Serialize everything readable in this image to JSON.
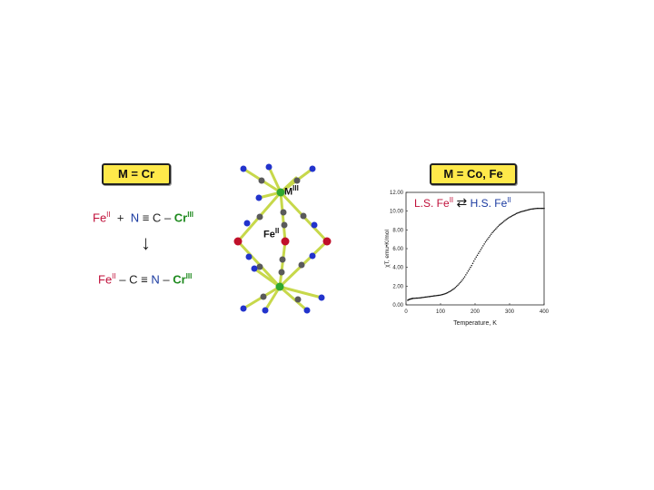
{
  "left": {
    "badge": "M = Cr",
    "reactants": {
      "fe": "Fe",
      "fe_ox": "II",
      "plus": "+",
      "n": "N",
      "triple": "≡",
      "c": "C",
      "dash": "–",
      "cr": "Cr",
      "cr_ox": "III"
    },
    "arrow": "↓",
    "product": {
      "fe": "Fe",
      "fe_ox": "II",
      "dash1": "–",
      "c": "C",
      "triple": "≡",
      "n": "N",
      "dash2": "–",
      "cr": "Cr",
      "cr_ox": "III"
    }
  },
  "structure": {
    "metal_label": "M",
    "metal_ox": "III",
    "fe_label": "Fe",
    "fe_ox": "II",
    "colors": {
      "bond": "#c7d84a",
      "metal": "#2fa82f",
      "iron": "#c0102a",
      "carbon": "#5a5a5a",
      "nitrogen": "#2233cc"
    }
  },
  "right": {
    "badge": "M = Co, Fe"
  },
  "chart_data": {
    "type": "scatter",
    "xlabel": "Temperature, K",
    "ylabel": "χT, emu•K/mol",
    "xlim": [
      0,
      400
    ],
    "ylim": [
      0,
      12
    ],
    "xticks": [
      "0",
      "100",
      "200",
      "300",
      "400"
    ],
    "yticks": [
      "0.00",
      "2.00",
      "4.00",
      "6.00",
      "8.00",
      "10.00",
      "12.00"
    ],
    "annotation": {
      "ls": "L.S. Fe",
      "ls_ox": "II",
      "hs": "H.S. Fe",
      "hs_ox": "II",
      "arrow": "⇄"
    },
    "x": [
      5,
      10,
      15,
      20,
      30,
      40,
      50,
      60,
      70,
      80,
      90,
      100,
      110,
      120,
      130,
      140,
      150,
      160,
      170,
      180,
      190,
      200,
      210,
      220,
      230,
      240,
      250,
      260,
      270,
      280,
      290,
      300,
      310,
      320,
      330,
      340,
      350,
      360,
      370,
      380,
      390,
      400
    ],
    "y": [
      0.5,
      0.6,
      0.65,
      0.7,
      0.72,
      0.75,
      0.8,
      0.85,
      0.9,
      0.95,
      1.0,
      1.05,
      1.15,
      1.3,
      1.5,
      1.75,
      2.1,
      2.5,
      3.0,
      3.6,
      4.2,
      4.9,
      5.5,
      6.1,
      6.7,
      7.2,
      7.7,
      8.1,
      8.5,
      8.8,
      9.1,
      9.35,
      9.55,
      9.75,
      9.9,
      10.0,
      10.1,
      10.2,
      10.25,
      10.3,
      10.3,
      10.3
    ]
  }
}
